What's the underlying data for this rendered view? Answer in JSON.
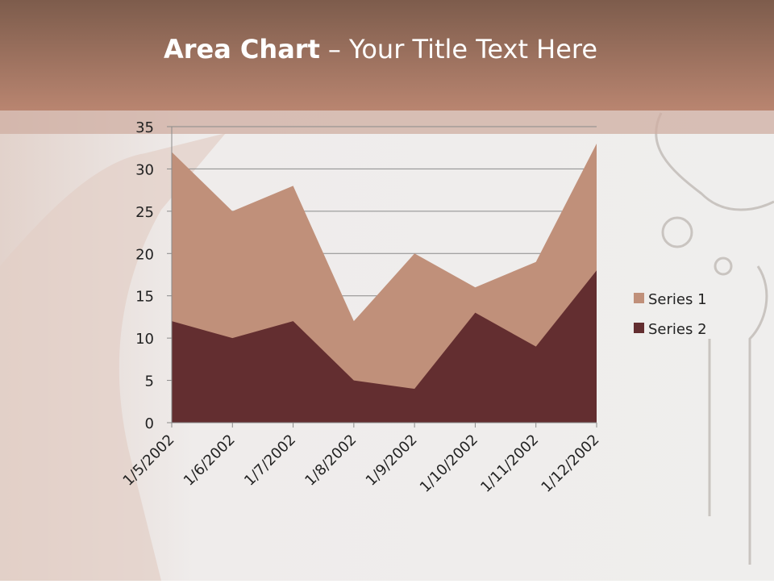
{
  "chart_data": {
    "type": "area",
    "title_parts": [
      "Area Chart",
      "– Your Title Text Here"
    ],
    "categories": [
      "1/5/2002",
      "1/6/2002",
      "1/7/2002",
      "1/8/2002",
      "1/9/2002",
      "1/10/2002",
      "1/11/2002",
      "1/12/2002"
    ],
    "series": [
      {
        "name": "Series 1",
        "color": "#c0907a",
        "values": [
          32,
          25,
          28,
          12,
          20,
          16,
          19,
          33
        ]
      },
      {
        "name": "Series 2",
        "color": "#632e30",
        "values": [
          12,
          10,
          12,
          5,
          4,
          13,
          9,
          18
        ]
      }
    ],
    "ylim": [
      0,
      35
    ],
    "yticks": [
      0,
      5,
      10,
      15,
      20,
      25,
      30,
      35
    ],
    "grid": true,
    "legend": "right"
  }
}
